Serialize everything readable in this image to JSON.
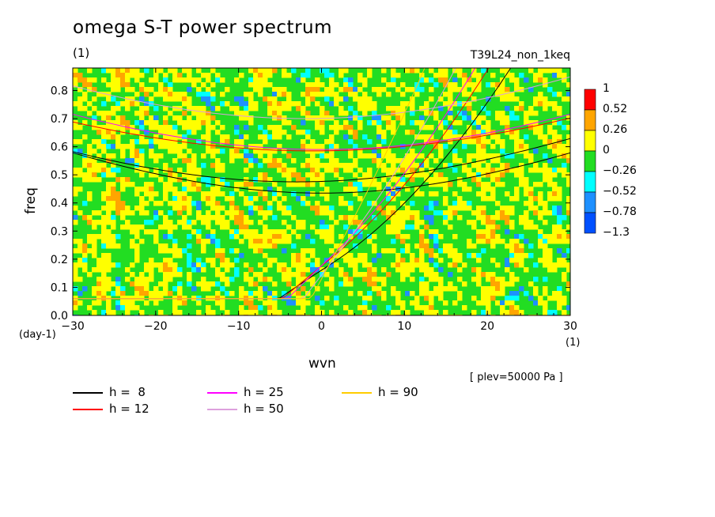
{
  "header": {
    "title": "omega S-T power spectrum",
    "unit_top": "(1)",
    "run_name": "T39L24_non_1keq"
  },
  "footer": {
    "plev": "[ plev=50000 Pa ]"
  },
  "chart_data": {
    "type": "heatmap",
    "title": "omega S-T power spectrum",
    "xlabel": "wvn",
    "ylabel": "freq",
    "x_unit": "(1)",
    "y_unit": "(day-1)",
    "xlim": [
      -30,
      30
    ],
    "ylim": [
      0,
      0.88
    ],
    "x_ticks": [
      -30,
      -20,
      -10,
      0,
      10,
      20,
      30
    ],
    "x_tick_labels": [
      "−30",
      "−20",
      "−10",
      "0",
      "10",
      "20",
      "30"
    ],
    "y_ticks": [
      0.0,
      0.1,
      0.2,
      0.3,
      0.4,
      0.5,
      0.6,
      0.7,
      0.8
    ],
    "y_tick_labels": [
      "0.0",
      "0.1",
      "0.2",
      "0.3",
      "0.4",
      "0.5",
      "0.6",
      "0.7",
      "0.8"
    ],
    "colorbar": {
      "labels": [
        "1",
        "0.52",
        "0.26",
        "0",
        "−0.26",
        "−0.52",
        "−0.78",
        "−1.3"
      ],
      "colors": [
        "#ff0000",
        "#ffa500",
        "#ffff00",
        "#22dd22",
        "#00ffff",
        "#1e90ff",
        "#0050ff"
      ]
    },
    "dominant_levels": "field mostly between -0.26 and 0.26, with scattered patches up to 0.52 and down to -0.78",
    "dispersion_curves": [
      {
        "name": "h =  8",
        "color": "#000000"
      },
      {
        "name": "h = 12",
        "color": "#ff0000"
      },
      {
        "name": "h = 25",
        "color": "#ff00ff"
      },
      {
        "name": "h = 50",
        "color": "#dda0dd"
      },
      {
        "name": "h = 90",
        "color": "#ffcc00"
      }
    ]
  }
}
